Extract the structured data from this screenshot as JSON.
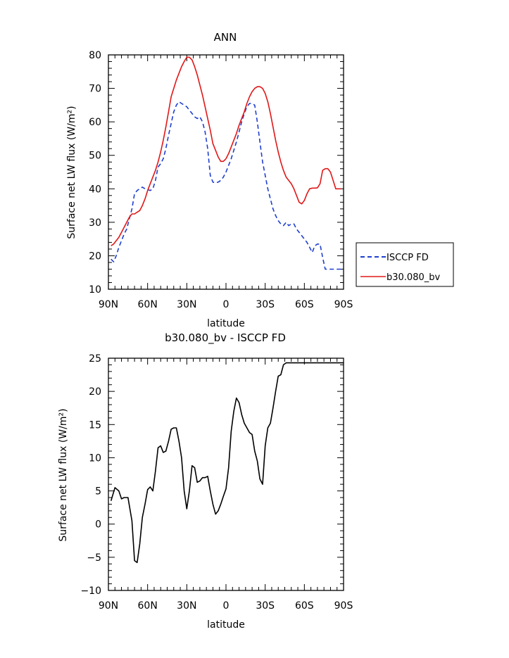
{
  "chart_data": [
    {
      "type": "line",
      "title": "ANN",
      "xlabel": "latitude",
      "ylabel": "Surface net LW flux (W/m²)",
      "xlim": [
        90,
        -90
      ],
      "ylim": [
        10,
        80
      ],
      "xtick_values": [
        90,
        60,
        30,
        0,
        -30,
        -60,
        -90
      ],
      "xtick_labels": [
        "90N",
        "60N",
        "30N",
        "0",
        "30S",
        "60S",
        "90S"
      ],
      "yticks": [
        10,
        20,
        30,
        40,
        50,
        60,
        70,
        80
      ],
      "legend": {
        "placement": "outside-right"
      },
      "series": [
        {
          "name": "ISCCP FD",
          "color": "#1f3fd0",
          "style": "dashed",
          "x": [
            88,
            86,
            84,
            82,
            80,
            78,
            76,
            74,
            72,
            70,
            68,
            66,
            64,
            62,
            60,
            58,
            56,
            54,
            52,
            50,
            48,
            46,
            44,
            42,
            40,
            38,
            36,
            34,
            32,
            30,
            28,
            26,
            24,
            22,
            20,
            18,
            16,
            14,
            12,
            10,
            8,
            6,
            4,
            2,
            0,
            -2,
            -4,
            -6,
            -8,
            -10,
            -12,
            -14,
            -16,
            -18,
            -20,
            -22,
            -24,
            -26,
            -28,
            -30,
            -32,
            -34,
            -36,
            -38,
            -40,
            -42,
            -44,
            -46,
            -48,
            -50,
            -52,
            -54,
            -56,
            -58,
            -60,
            -62,
            -64,
            -66,
            -68,
            -70,
            -72,
            -74,
            -76,
            -78,
            -80,
            -82,
            -84,
            -86,
            -88
          ],
          "values": [
            19.0,
            18.2,
            20.0,
            22.5,
            24.5,
            26.5,
            28.0,
            31.0,
            34.0,
            38.5,
            39.5,
            40.0,
            40.5,
            40.0,
            39.8,
            39.5,
            40.0,
            42.5,
            46.5,
            47.5,
            49.0,
            52.0,
            56.0,
            59.5,
            63.0,
            65.0,
            66.0,
            65.5,
            65.0,
            64.5,
            63.5,
            62.5,
            61.5,
            61.0,
            61.5,
            60.0,
            57.0,
            52.0,
            44.0,
            42.0,
            41.8,
            42.0,
            42.5,
            43.5,
            45.0,
            47.0,
            49.0,
            51.5,
            54.0,
            57.0,
            60.0,
            62.5,
            64.5,
            65.5,
            65.5,
            65.0,
            60.0,
            54.0,
            48.0,
            44.0,
            40.0,
            37.0,
            34.0,
            32.0,
            30.5,
            29.5,
            29.0,
            30.0,
            29.0,
            29.5,
            29.5,
            28.0,
            27.0,
            26.0,
            25.0,
            24.0,
            22.5,
            21.0,
            23.0,
            23.5,
            23.5,
            19.5,
            16.0,
            16.0,
            16.0,
            16.0,
            16.0,
            16.0,
            16.0
          ]
        },
        {
          "name": "b30.080_bv",
          "color": "#e01818",
          "style": "solid",
          "x": [
            88,
            86,
            84,
            82,
            80,
            78,
            76,
            74,
            72,
            70,
            68,
            66,
            64,
            62,
            60,
            58,
            56,
            54,
            52,
            50,
            48,
            46,
            44,
            42,
            40,
            38,
            36,
            34,
            32,
            30,
            28,
            26,
            24,
            22,
            20,
            18,
            16,
            14,
            12,
            10,
            8,
            6,
            4,
            2,
            0,
            -2,
            -4,
            -6,
            -8,
            -10,
            -12,
            -14,
            -16,
            -18,
            -20,
            -22,
            -24,
            -26,
            -28,
            -30,
            -32,
            -34,
            -36,
            -38,
            -40,
            -42,
            -44,
            -46,
            -48,
            -50,
            -52,
            -54,
            -56,
            -58,
            -60,
            -62,
            -64,
            -66,
            -68,
            -70,
            -72,
            -74,
            -76,
            -78,
            -80,
            -82,
            -84,
            -86,
            -88
          ],
          "values": [
            23.0,
            23.5,
            24.5,
            25.5,
            27.0,
            28.5,
            30.0,
            31.5,
            32.5,
            32.5,
            33.0,
            33.5,
            35.0,
            37.0,
            39.5,
            41.5,
            43.5,
            45.5,
            48.0,
            51.0,
            54.5,
            58.5,
            63.0,
            67.5,
            70.0,
            72.5,
            74.5,
            76.5,
            78.0,
            79.3,
            79.3,
            78.5,
            76.5,
            74.0,
            71.0,
            68.0,
            64.5,
            61.0,
            57.5,
            53.5,
            51.5,
            49.5,
            48.2,
            48.2,
            49.0,
            50.5,
            52.5,
            54.5,
            56.5,
            59.0,
            61.0,
            63.0,
            65.5,
            67.5,
            69.0,
            70.0,
            70.5,
            70.5,
            70.0,
            68.5,
            66.0,
            62.5,
            58.5,
            54.5,
            51.0,
            48.0,
            45.5,
            43.5,
            42.5,
            41.5,
            40.0,
            38.0,
            36.0,
            35.5,
            36.5,
            38.5,
            40.0,
            40.2,
            40.2,
            40.3,
            41.5,
            45.5,
            46.0,
            46.0,
            45.0,
            42.5,
            40.0,
            40.0,
            40.0
          ]
        }
      ]
    },
    {
      "type": "line",
      "title": "b30.080_bv - ISCCP FD",
      "xlabel": "latitude",
      "ylabel": "Surface net LW flux (W/m²)",
      "xlim": [
        90,
        -90
      ],
      "ylim": [
        -10,
        25
      ],
      "xtick_values": [
        90,
        60,
        30,
        0,
        -30,
        -60,
        -90
      ],
      "xtick_labels": [
        "90N",
        "60N",
        "30N",
        "0",
        "30S",
        "60S",
        "90S"
      ],
      "yticks": [
        -10,
        -5,
        0,
        5,
        10,
        15,
        20,
        25
      ],
      "series": [
        {
          "color": "#000000",
          "style": "solid",
          "x": [
            88,
            85,
            82,
            80,
            78,
            75,
            72,
            70,
            68,
            66,
            64,
            62,
            60,
            58,
            56,
            54,
            52,
            50,
            48,
            46,
            44,
            42,
            40,
            38,
            36,
            34,
            32,
            30,
            28,
            26,
            24,
            22,
            20,
            18,
            16,
            14,
            12,
            10,
            8,
            6,
            4,
            2,
            0,
            -2,
            -4,
            -6,
            -8,
            -10,
            -12,
            -14,
            -16,
            -18,
            -20,
            -22,
            -24,
            -26,
            -28,
            -30,
            -32,
            -34,
            -36,
            -38,
            -40,
            -42,
            -44,
            -46,
            -48,
            -50,
            -52,
            -54,
            -56,
            -58,
            -60,
            -62,
            -64,
            -66,
            -68,
            -70,
            -72,
            -74,
            -76,
            -78,
            -80,
            -82,
            -84,
            -86,
            -88,
            -90
          ],
          "values": [
            3.5,
            5.5,
            5.0,
            3.8,
            4.0,
            4.0,
            0.5,
            -5.5,
            -5.8,
            -3.0,
            1.0,
            3.0,
            5.2,
            5.6,
            5.0,
            8.0,
            11.5,
            11.8,
            10.8,
            11.0,
            12.5,
            14.3,
            14.5,
            14.5,
            12.5,
            10.0,
            5.0,
            2.3,
            5.0,
            8.8,
            8.5,
            6.3,
            6.5,
            7.0,
            7.0,
            7.2,
            5.0,
            3.0,
            1.5,
            2.0,
            3.0,
            4.2,
            5.3,
            8.5,
            14.0,
            17.0,
            19.0,
            18.3,
            16.5,
            15.2,
            14.5,
            13.8,
            13.5,
            11.0,
            9.5,
            6.8,
            6.0,
            11.8,
            14.5,
            15.2,
            17.5,
            20.0,
            22.3,
            22.5,
            24.0,
            24.3,
            24.3,
            24.3,
            24.3,
            24.3,
            24.3,
            24.3,
            24.3,
            24.3,
            24.3,
            24.3,
            24.3,
            24.3,
            24.3,
            24.3,
            24.3,
            24.3,
            24.3,
            24.3,
            24.3,
            24.3,
            24.3,
            24.3
          ]
        }
      ]
    }
  ]
}
